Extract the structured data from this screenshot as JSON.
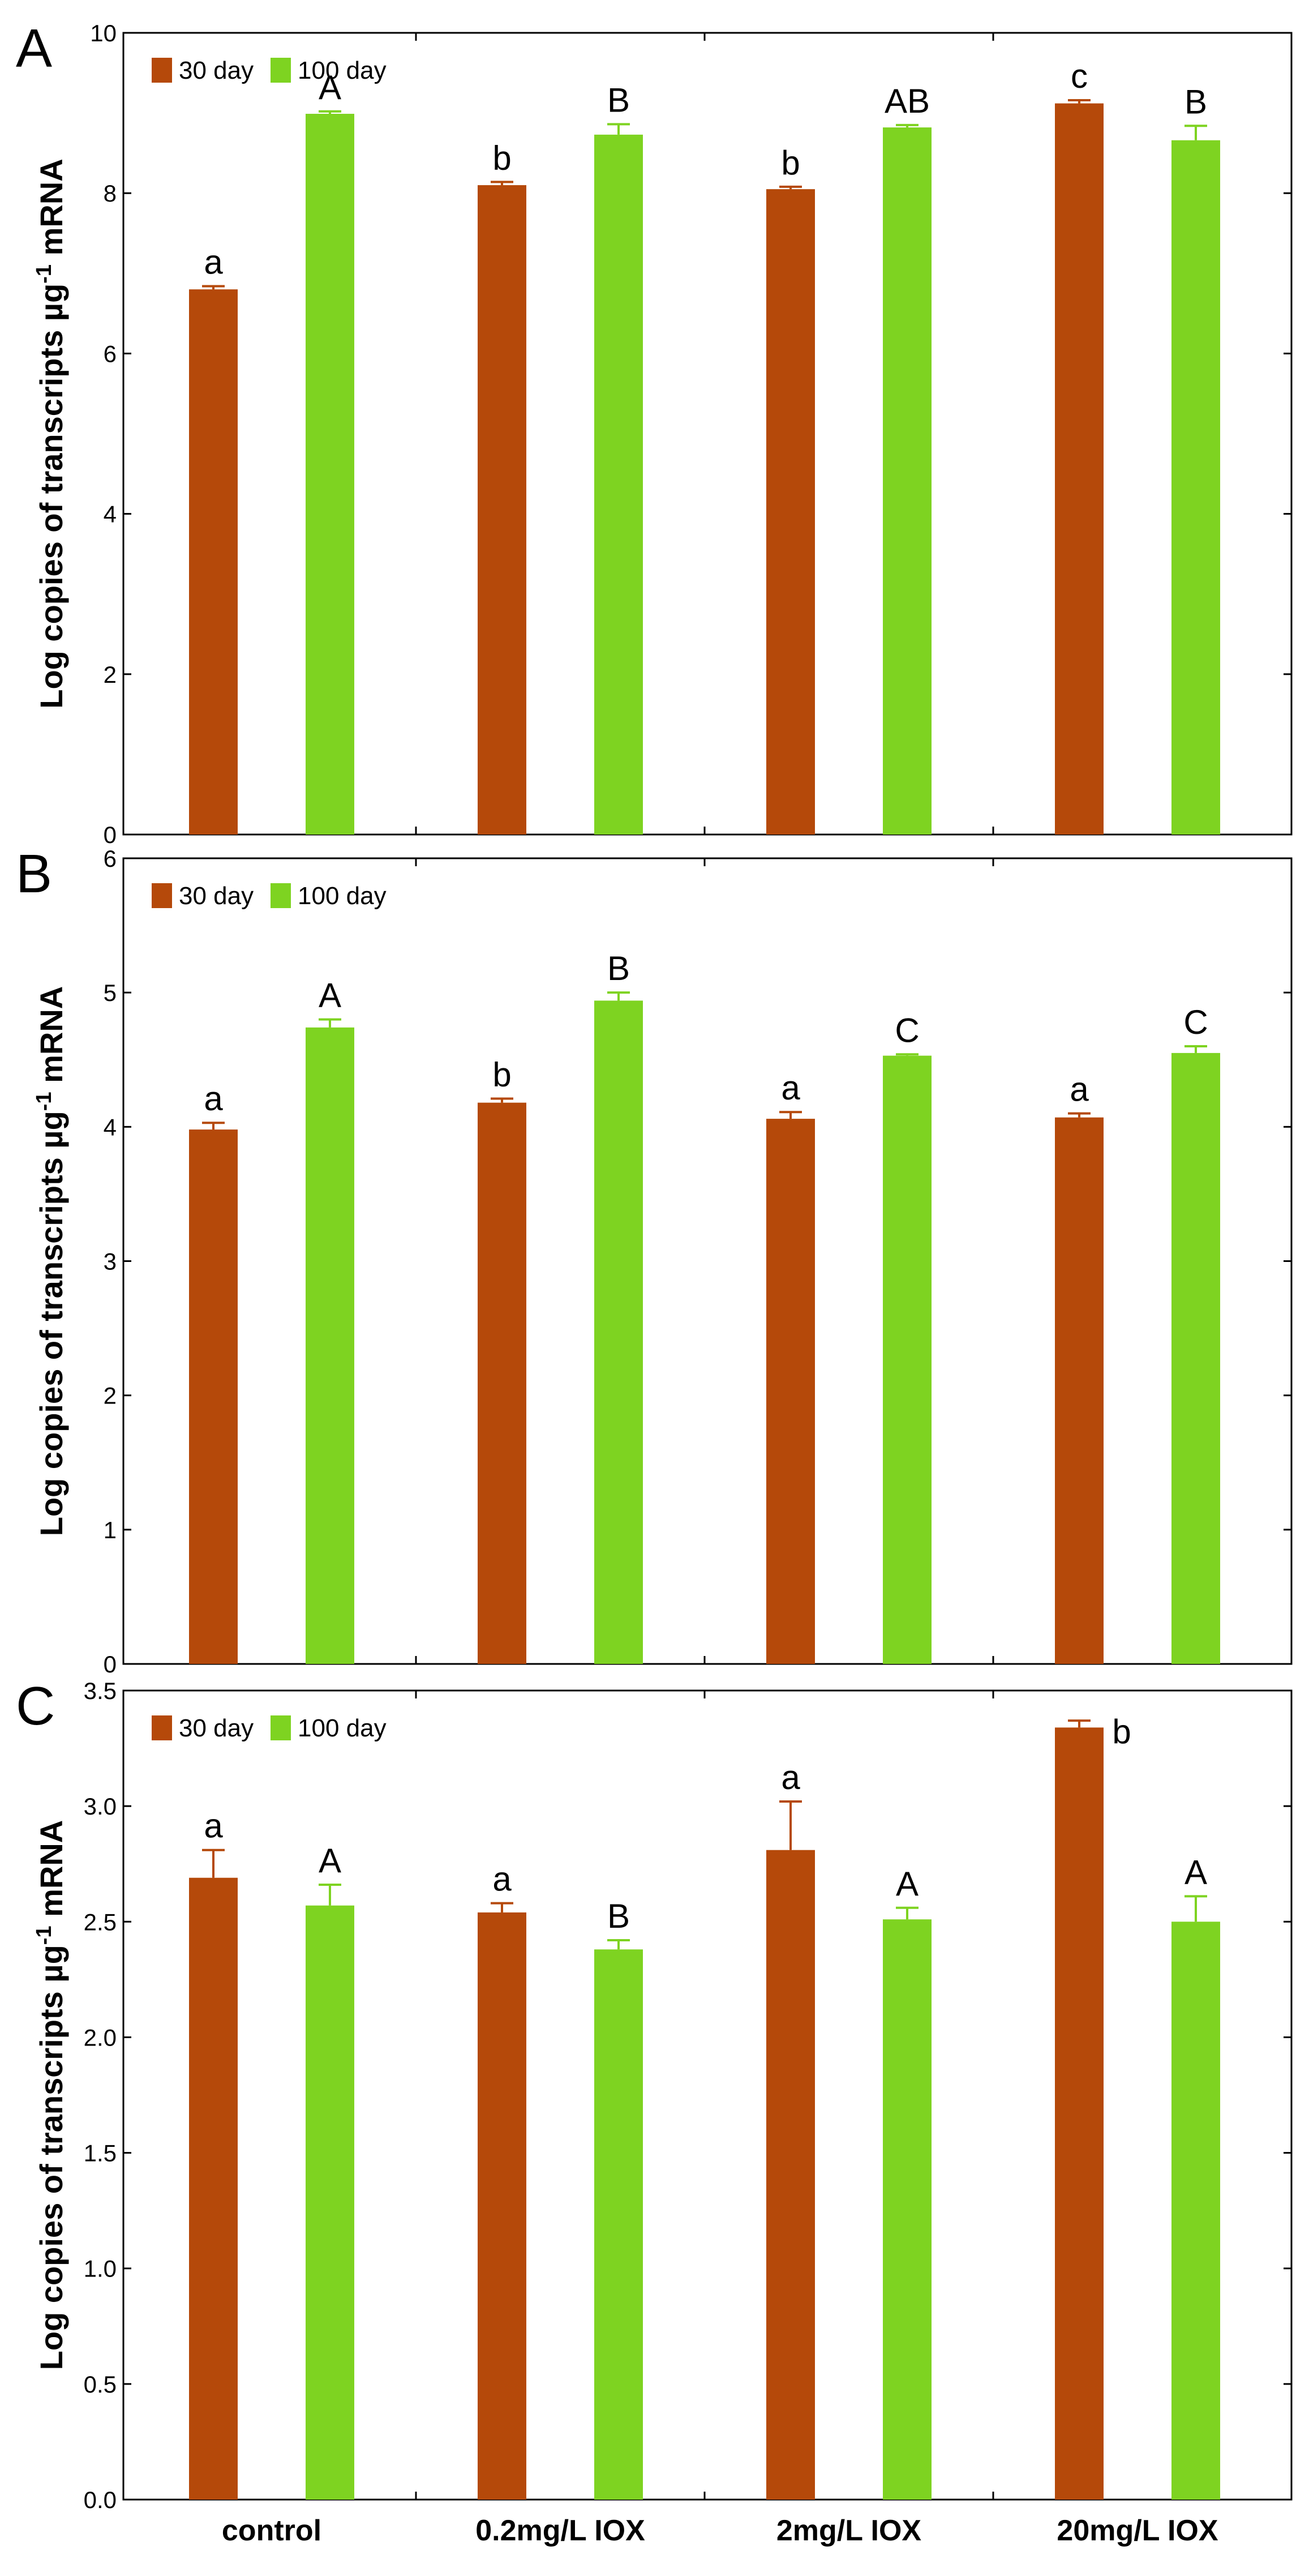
{
  "colors": {
    "series_30": "#b5490a",
    "series_100": "#7ed321",
    "axis": "#000000"
  },
  "chart_data": [
    {
      "type": "bar",
      "panel": "A",
      "ylabel": "Log copies of transcripts µg-1 mRNA",
      "ylabel_main": "Log copies of transcripts µg",
      "ylabel_sup": "-1",
      "ylabel_end": " mRNA",
      "ylim": [
        0,
        10
      ],
      "yticks": [
        "0",
        "2",
        "4",
        "6",
        "8",
        "10"
      ],
      "legend": [
        "30 day",
        "100 day"
      ],
      "categories": [
        "control",
        "0.2mg/L IOX",
        "2mg/L IOX",
        "20mg/L IOX"
      ],
      "series": [
        {
          "name": "30 day",
          "values": [
            6.8,
            8.1,
            8.05,
            9.12
          ],
          "errors": [
            0.04,
            0.04,
            0.03,
            0.04
          ],
          "labels": [
            "a",
            "b",
            "b",
            "c"
          ]
        },
        {
          "name": "100 day",
          "values": [
            8.99,
            8.73,
            8.82,
            8.66
          ],
          "errors": [
            0.03,
            0.13,
            0.03,
            0.18
          ],
          "labels": [
            "A",
            "B",
            "AB",
            "B"
          ]
        }
      ]
    },
    {
      "type": "bar",
      "panel": "B",
      "ylabel": "Log copies of transcripts µg-1 mRNA",
      "ylabel_main": "Log copies of transcripts µg",
      "ylabel_sup": "-1",
      "ylabel_end": " mRNA",
      "ylim": [
        0,
        6
      ],
      "yticks": [
        "0",
        "1",
        "2",
        "3",
        "4",
        "5",
        "6"
      ],
      "legend": [
        "30 day",
        "100 day"
      ],
      "categories": [
        "control",
        "0.2mg/L IOX",
        "2mg/L IOX",
        "20mg/L IOX"
      ],
      "series": [
        {
          "name": "30 day",
          "values": [
            3.98,
            4.18,
            4.06,
            4.07
          ],
          "errors": [
            0.05,
            0.03,
            0.05,
            0.03
          ],
          "labels": [
            "a",
            "b",
            "a",
            "a"
          ]
        },
        {
          "name": "100 day",
          "values": [
            4.74,
            4.94,
            4.53,
            4.55
          ],
          "errors": [
            0.06,
            0.06,
            0.01,
            0.05
          ],
          "labels": [
            "A",
            "B",
            "C",
            "C"
          ]
        }
      ]
    },
    {
      "type": "bar",
      "panel": "C",
      "ylabel": "Log copies of transcripts µg-1 mRNA",
      "ylabel_main": "Log copies of transcripts µg",
      "ylabel_sup": "-1",
      "ylabel_end": " mRNA",
      "ylim": [
        0,
        3.5
      ],
      "yticks": [
        "0.0",
        "0.5",
        "1.0",
        "1.5",
        "2.0",
        "2.5",
        "3.0",
        "3.5"
      ],
      "legend": [
        "30 day",
        "100 day"
      ],
      "categories": [
        "control",
        "0.2mg/L IOX",
        "2mg/L IOX",
        "20mg/L IOX"
      ],
      "series": [
        {
          "name": "30 day",
          "values": [
            2.69,
            2.54,
            2.81,
            3.34
          ],
          "errors": [
            0.12,
            0.04,
            0.21,
            0.03
          ],
          "labels": [
            "a",
            "a",
            "a",
            "b"
          ]
        },
        {
          "name": "100 day",
          "values": [
            2.57,
            2.38,
            2.51,
            2.5
          ],
          "errors": [
            0.09,
            0.04,
            0.05,
            0.11
          ],
          "labels": [
            "A",
            "B",
            "A",
            "A"
          ]
        }
      ]
    }
  ]
}
